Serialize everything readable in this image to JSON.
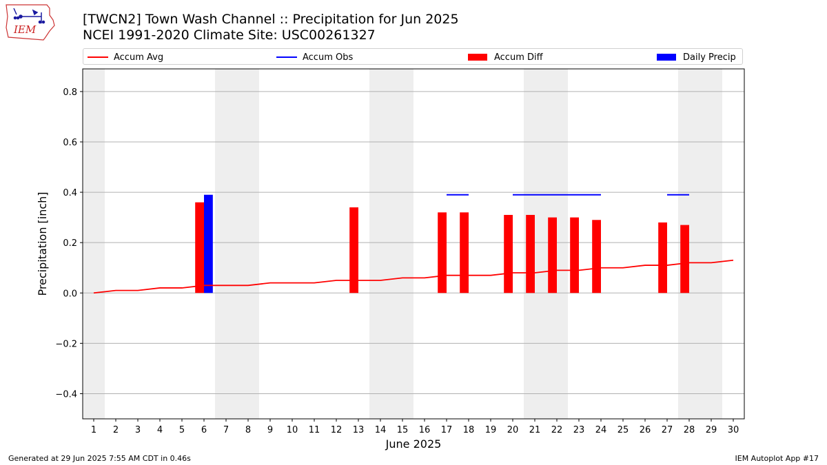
{
  "header": {
    "logo_text": "IEM",
    "title_line1": "[TWCN2] Town Wash Channel :: Precipitation for Jun 2025",
    "title_line2": "NCEI 1991-2020 Climate Site: USC00261327"
  },
  "footer": {
    "left": "Generated at 29 Jun 2025 7:55 AM CDT in 0.46s",
    "right": "IEM Autoplot App #17"
  },
  "colors": {
    "avg": "#ff0000",
    "obs": "#0000ff",
    "diff": "#ff0000",
    "daily": "#0000ff",
    "weekend": "#eeeeee",
    "grid": "#b0b0b0"
  },
  "chart_data": {
    "type": "bar",
    "xlabel": "June 2025",
    "ylabel": "Precipitation [inch]",
    "xlim": [
      0.5,
      30.5
    ],
    "ylim": [
      -0.5,
      0.89
    ],
    "yticks": [
      -0.4,
      -0.2,
      0.0,
      0.2,
      0.4,
      0.6,
      0.8
    ],
    "ytick_labels": [
      "−0.4",
      "−0.2",
      "0.0",
      "0.2",
      "0.4",
      "0.6",
      "0.8"
    ],
    "x_tick_labels": [
      "1",
      "2",
      "3",
      "4",
      "5",
      "6",
      "7",
      "8",
      "9",
      "10",
      "11",
      "12",
      "13",
      "14",
      "15",
      "16",
      "17",
      "18",
      "19",
      "20",
      "21",
      "22",
      "23",
      "24",
      "25",
      "26",
      "27",
      "28",
      "29",
      "30"
    ],
    "grid": "horizontal",
    "legend_position": "top",
    "weekend_days": [
      1,
      7,
      8,
      14,
      15,
      21,
      22,
      28,
      29
    ],
    "series": [
      {
        "name": "Accum Avg",
        "kind": "line",
        "x": [
          1,
          2,
          3,
          4,
          5,
          6,
          7,
          8,
          9,
          10,
          11,
          12,
          13,
          14,
          15,
          16,
          17,
          18,
          19,
          20,
          21,
          22,
          23,
          24,
          25,
          26,
          27,
          28,
          29,
          30
        ],
        "values": [
          0.0,
          0.01,
          0.01,
          0.02,
          0.02,
          0.03,
          0.03,
          0.03,
          0.04,
          0.04,
          0.04,
          0.05,
          0.05,
          0.05,
          0.06,
          0.06,
          0.07,
          0.07,
          0.07,
          0.08,
          0.08,
          0.09,
          0.09,
          0.1,
          0.1,
          0.11,
          0.11,
          0.12,
          0.12,
          0.13
        ]
      },
      {
        "name": "Accum Obs",
        "kind": "step",
        "segments": [
          {
            "x_start": 17,
            "x_end": 18,
            "value": 0.39
          },
          {
            "x_start": 20,
            "x_end": 24,
            "value": 0.39
          },
          {
            "x_start": 27,
            "x_end": 28,
            "value": 0.39
          }
        ]
      },
      {
        "name": "Accum Diff",
        "kind": "bar",
        "x": [
          6,
          13,
          17,
          18,
          20,
          21,
          22,
          23,
          24,
          27,
          28
        ],
        "values": [
          0.36,
          0.34,
          0.32,
          0.32,
          0.31,
          0.31,
          0.3,
          0.3,
          0.29,
          0.28,
          0.27
        ]
      },
      {
        "name": "Daily Precip",
        "kind": "bar",
        "x": [
          6
        ],
        "values": [
          0.39
        ]
      }
    ]
  }
}
